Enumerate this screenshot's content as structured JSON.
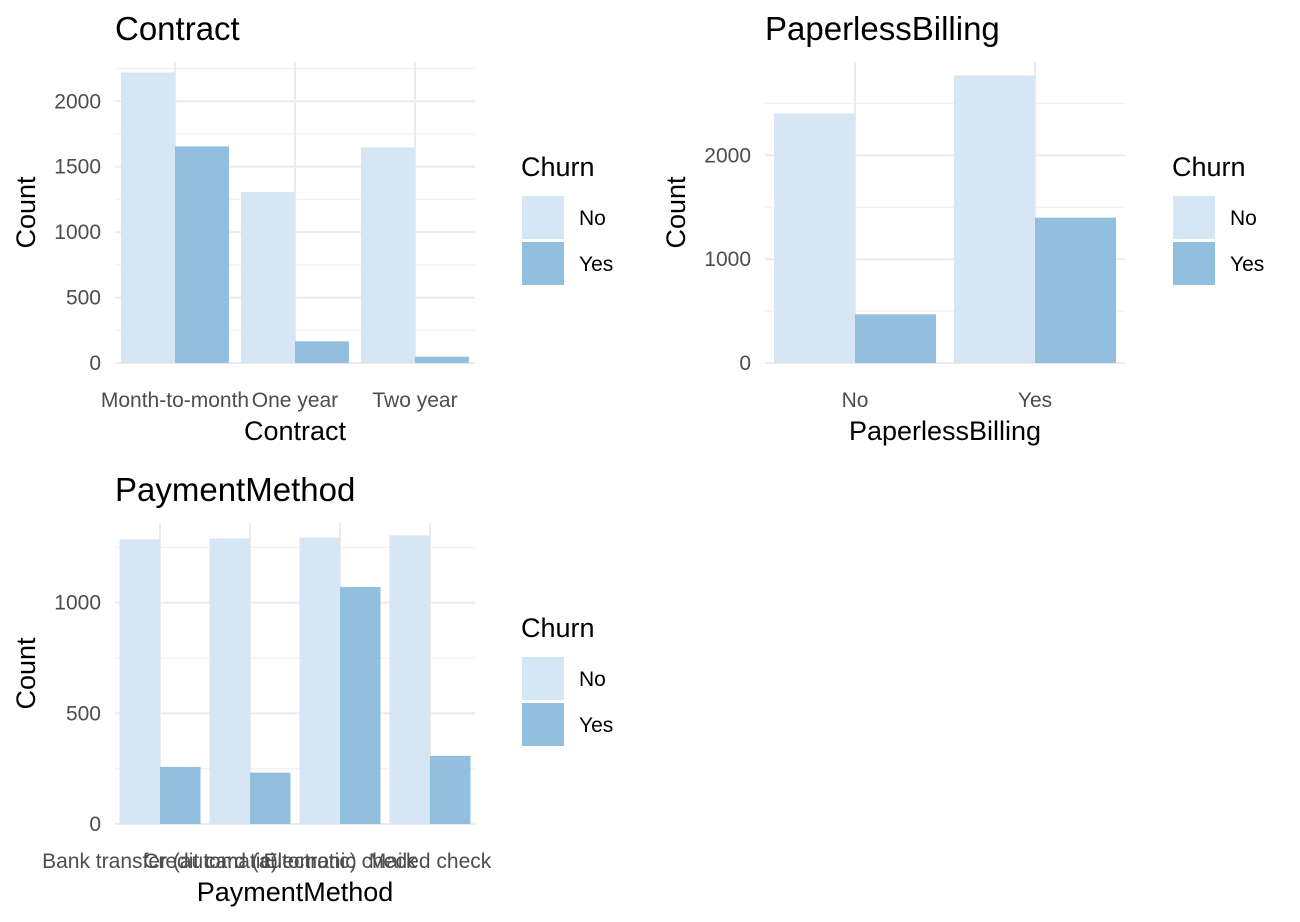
{
  "colors": {
    "No": "#d6e6f4",
    "Yes": "#91bfdd"
  },
  "legend": {
    "title": "Churn",
    "labels": [
      "No",
      "Yes"
    ]
  },
  "chart_data": [
    {
      "type": "bar",
      "title": "Contract",
      "xlabel": "Contract",
      "ylabel": "Count",
      "categories": [
        "Month-to-month",
        "One year",
        "Two year"
      ],
      "series": [
        {
          "name": "No",
          "values": [
            2220,
            1307,
            1647
          ]
        },
        {
          "name": "Yes",
          "values": [
            1655,
            166,
            48
          ]
        }
      ],
      "ylim": [
        0,
        2300
      ],
      "yticks": [
        0,
        500,
        1000,
        1500,
        2000
      ],
      "grid": true,
      "legend_position": "right"
    },
    {
      "type": "bar",
      "title": "PaperlessBilling",
      "xlabel": "PaperlessBilling",
      "ylabel": "Count",
      "categories": [
        "No",
        "Yes"
      ],
      "series": [
        {
          "name": "No",
          "values": [
            2403,
            2771
          ]
        },
        {
          "name": "Yes",
          "values": [
            469,
            1400
          ]
        }
      ],
      "ylim": [
        0,
        2900
      ],
      "yticks": [
        0,
        1000,
        2000
      ],
      "grid": true,
      "legend_position": "right"
    },
    {
      "type": "bar",
      "title": "PaymentMethod",
      "xlabel": "PaymentMethod",
      "ylabel": "Count",
      "categories": [
        "Bank transfer (automatic)",
        "Credit card (automatic)",
        "Electronic check",
        "Mailed check"
      ],
      "series": [
        {
          "name": "No",
          "values": [
            1286,
            1290,
            1294,
            1304
          ]
        },
        {
          "name": "Yes",
          "values": [
            258,
            232,
            1071,
            308
          ]
        }
      ],
      "ylim": [
        0,
        1360
      ],
      "yticks": [
        0,
        500,
        1000
      ],
      "grid": true,
      "legend_position": "right"
    }
  ]
}
